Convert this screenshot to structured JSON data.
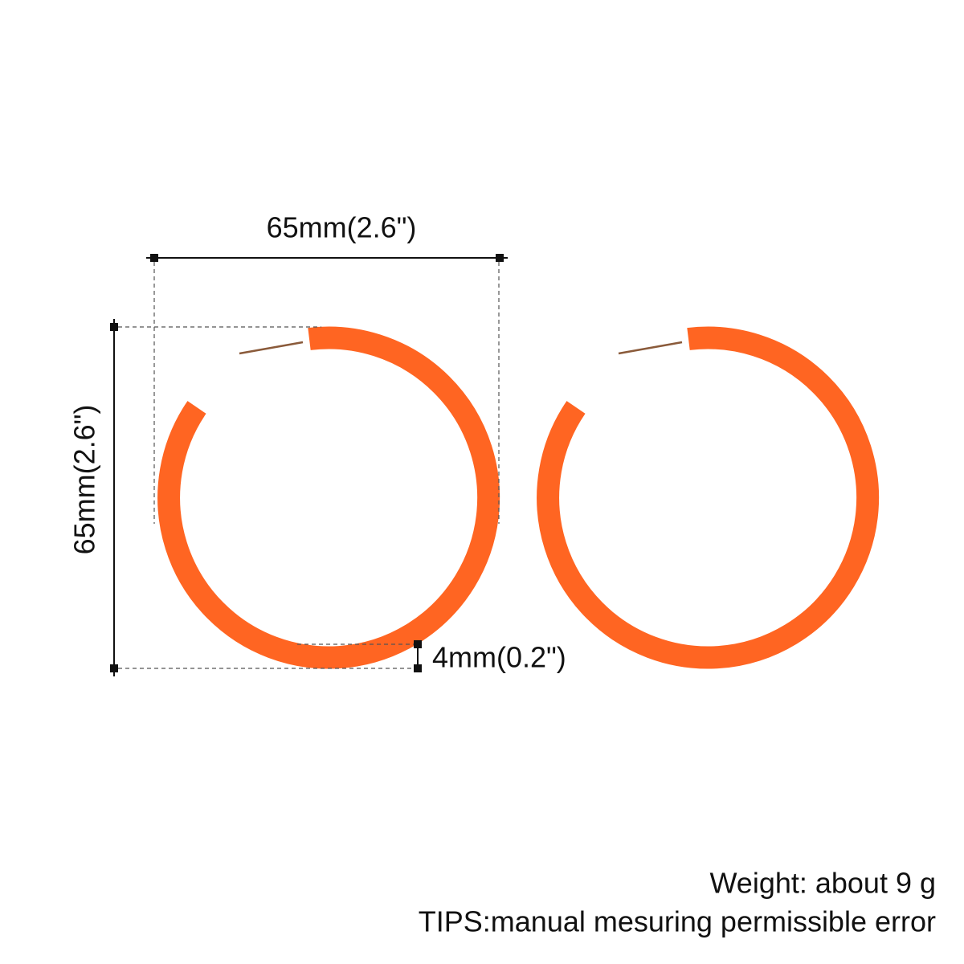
{
  "dimensions": {
    "width": "65mm(2.6\")",
    "height": "65mm(2.6\")",
    "thickness": "4mm(0.2\")"
  },
  "notes": {
    "weight": "Weight: about 9 g",
    "tips": "TIPS:manual mesuring permissible error"
  }
}
